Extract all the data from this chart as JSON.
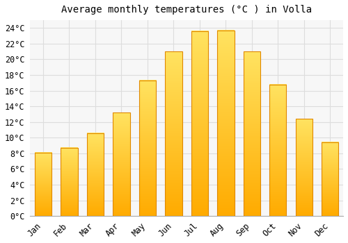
{
  "title": "Average monthly temperatures (°C ) in Volla",
  "months": [
    "Jan",
    "Feb",
    "Mar",
    "Apr",
    "May",
    "Jun",
    "Jul",
    "Aug",
    "Sep",
    "Oct",
    "Nov",
    "Dec"
  ],
  "values": [
    8.1,
    8.7,
    10.6,
    13.2,
    17.3,
    21.0,
    23.6,
    23.7,
    21.0,
    16.8,
    12.4,
    9.4
  ],
  "bar_color_main": "#FFAA00",
  "bar_color_light": "#FFD060",
  "bar_edge_color": "#E08800",
  "background_color": "#FFFFFF",
  "plot_bg_color": "#F7F7F7",
  "grid_color": "#DDDDDD",
  "ylim": [
    0,
    25
  ],
  "ytick_step": 2,
  "title_fontsize": 10,
  "tick_fontsize": 8.5,
  "font_family": "monospace"
}
